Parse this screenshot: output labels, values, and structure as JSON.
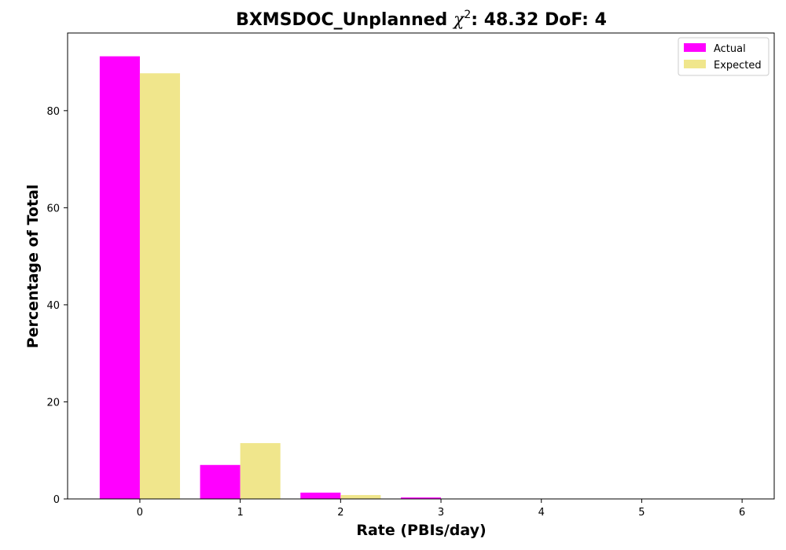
{
  "chart_data": {
    "type": "bar",
    "title": "BXMSDOC_Unplanned χ²: 48.32 DoF: 4",
    "title_parts": {
      "prefix": "BXMSDOC_Unplanned ",
      "chi": "χ",
      "exp": "2",
      "suffix": ": 48.32 DoF: 4"
    },
    "xlabel": "Rate (PBIs/day)",
    "ylabel": "Percentage of Total",
    "categories": [
      0,
      1,
      2,
      3,
      4,
      5,
      6
    ],
    "xticks": [
      "0",
      "1",
      "2",
      "3",
      "4",
      "5",
      "6"
    ],
    "yticks": [
      0,
      20,
      40,
      60,
      80
    ],
    "ylim": [
      0,
      96
    ],
    "xlim": [
      -0.72,
      6.32
    ],
    "series": [
      {
        "name": "Actual",
        "color": "#ff00ff",
        "values": [
          91.2,
          7.0,
          1.3,
          0.3,
          0,
          0,
          0
        ]
      },
      {
        "name": "Expected",
        "color": "#f0e68c",
        "values": [
          87.7,
          11.5,
          0.8,
          0.04,
          0,
          0,
          0
        ]
      }
    ],
    "legend": {
      "position": "top-right"
    },
    "grid": false
  }
}
